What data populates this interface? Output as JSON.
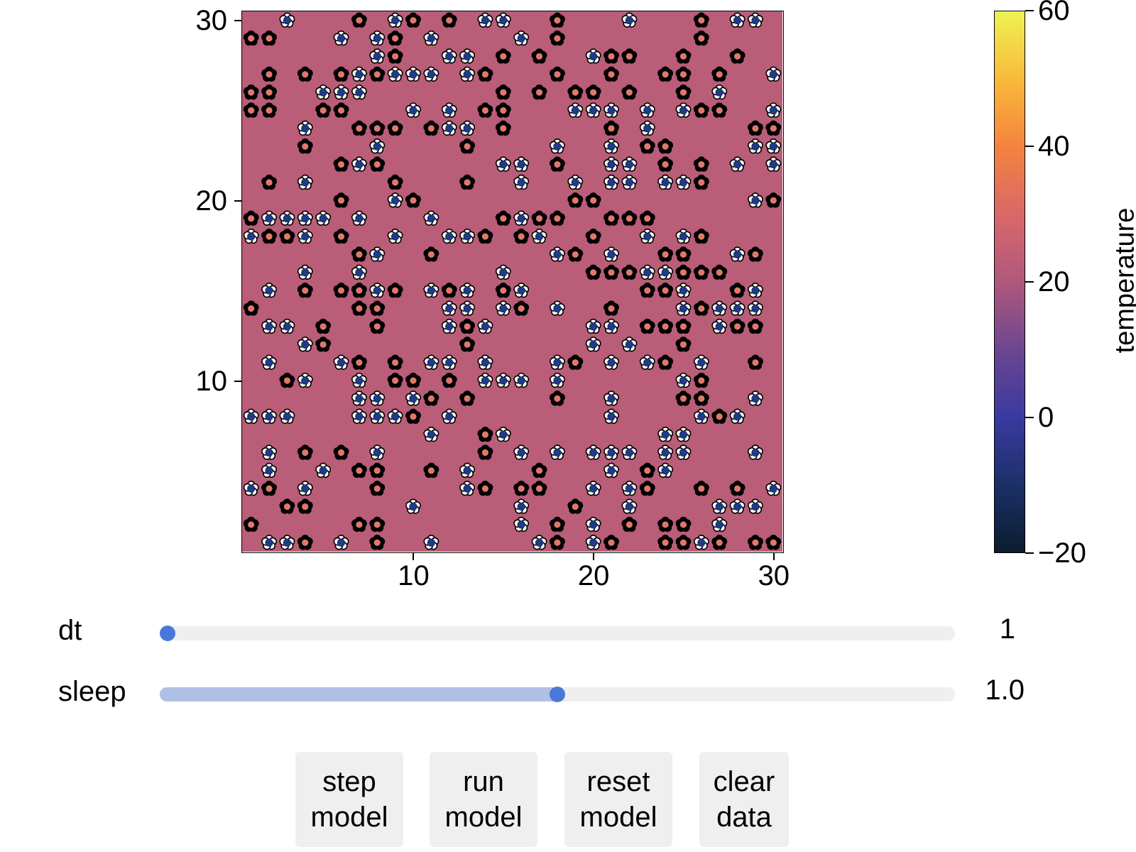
{
  "plot": {
    "x_ticks": [
      "10",
      "20",
      "30"
    ],
    "y_ticks": [
      "10",
      "20",
      "30"
    ]
  },
  "colorbar": {
    "label": "temperature",
    "ticks": [
      "60",
      "40",
      "20",
      "0",
      "−20"
    ],
    "range": [
      -20,
      60
    ],
    "colors": [
      "#0b1d2e",
      "#1b2f66",
      "#3a3aa0",
      "#6a4592",
      "#b0587c",
      "#d8676a",
      "#f4833e",
      "#f9b83a",
      "#eef253"
    ]
  },
  "background_color": "#b95d78",
  "daisy_colors": {
    "white_petal": "#ffffff",
    "white_center": "#1f3b8c",
    "black_petal": "#000000",
    "black_center": "#e0786a"
  },
  "sliders": [
    {
      "label": "dt",
      "value_text": "1",
      "fraction": 0.0
    },
    {
      "label": "sleep",
      "value_text": "1.0",
      "fraction": 0.5
    }
  ],
  "buttons": [
    {
      "label": "step\nmodel"
    },
    {
      "label": "run\nmodel"
    },
    {
      "label": "reset\nmodel"
    },
    {
      "label": "clear\ndata"
    }
  ],
  "chart_data": {
    "type": "heatmap",
    "xlim": [
      0.5,
      30.5
    ],
    "ylim": [
      0.5,
      30.5
    ],
    "colorbar_label": "temperature",
    "colorbar_range": [
      -20,
      60
    ],
    "agents": {
      "white_daisies": [
        [
          3,
          30
        ],
        [
          9,
          30
        ],
        [
          14,
          30
        ],
        [
          15,
          30
        ],
        [
          22,
          30
        ],
        [
          28,
          30
        ],
        [
          29,
          30
        ],
        [
          6,
          29
        ],
        [
          8,
          29
        ],
        [
          11,
          29
        ],
        [
          16,
          29
        ],
        [
          8,
          28
        ],
        [
          12,
          28
        ],
        [
          13,
          28
        ],
        [
          20,
          28
        ],
        [
          7,
          27
        ],
        [
          9,
          27
        ],
        [
          10,
          27
        ],
        [
          11,
          27
        ],
        [
          13,
          27
        ],
        [
          30,
          27
        ],
        [
          5,
          26
        ],
        [
          6,
          26
        ],
        [
          7,
          26
        ],
        [
          27,
          26
        ],
        [
          10,
          25
        ],
        [
          12,
          25
        ],
        [
          19,
          25
        ],
        [
          20,
          25
        ],
        [
          21,
          25
        ],
        [
          23,
          25
        ],
        [
          25,
          25
        ],
        [
          30,
          25
        ],
        [
          4,
          24
        ],
        [
          12,
          24
        ],
        [
          13,
          24
        ],
        [
          23,
          24
        ],
        [
          8,
          23
        ],
        [
          18,
          23
        ],
        [
          21,
          23
        ],
        [
          29,
          23
        ],
        [
          30,
          23
        ],
        [
          7,
          22
        ],
        [
          15,
          22
        ],
        [
          16,
          22
        ],
        [
          21,
          22
        ],
        [
          22,
          22
        ],
        [
          28,
          22
        ],
        [
          30,
          22
        ],
        [
          4,
          21
        ],
        [
          16,
          21
        ],
        [
          19,
          21
        ],
        [
          21,
          21
        ],
        [
          22,
          21
        ],
        [
          24,
          21
        ],
        [
          25,
          21
        ],
        [
          9,
          20
        ],
        [
          29,
          20
        ],
        [
          2,
          19
        ],
        [
          3,
          19
        ],
        [
          4,
          19
        ],
        [
          5,
          19
        ],
        [
          7,
          19
        ],
        [
          11,
          19
        ],
        [
          16,
          19
        ],
        [
          1,
          18
        ],
        [
          4,
          18
        ],
        [
          9,
          18
        ],
        [
          12,
          18
        ],
        [
          13,
          18
        ],
        [
          17,
          18
        ],
        [
          23,
          18
        ],
        [
          25,
          18
        ],
        [
          8,
          17
        ],
        [
          18,
          17
        ],
        [
          21,
          17
        ],
        [
          28,
          17
        ],
        [
          4,
          16
        ],
        [
          7,
          16
        ],
        [
          15,
          16
        ],
        [
          23,
          16
        ],
        [
          24,
          16
        ],
        [
          2,
          15
        ],
        [
          8,
          15
        ],
        [
          11,
          15
        ],
        [
          13,
          15
        ],
        [
          16,
          15
        ],
        [
          25,
          15
        ],
        [
          29,
          15
        ],
        [
          12,
          14
        ],
        [
          13,
          14
        ],
        [
          15,
          14
        ],
        [
          18,
          14
        ],
        [
          25,
          14
        ],
        [
          27,
          14
        ],
        [
          28,
          14
        ],
        [
          29,
          14
        ],
        [
          2,
          13
        ],
        [
          3,
          13
        ],
        [
          12,
          13
        ],
        [
          14,
          13
        ],
        [
          20,
          13
        ],
        [
          21,
          13
        ],
        [
          27,
          13
        ],
        [
          4,
          12
        ],
        [
          20,
          12
        ],
        [
          22,
          12
        ],
        [
          2,
          11
        ],
        [
          6,
          11
        ],
        [
          11,
          11
        ],
        [
          12,
          11
        ],
        [
          14,
          11
        ],
        [
          18,
          11
        ],
        [
          21,
          11
        ],
        [
          23,
          11
        ],
        [
          26,
          11
        ],
        [
          4,
          10
        ],
        [
          7,
          10
        ],
        [
          14,
          10
        ],
        [
          15,
          10
        ],
        [
          16,
          10
        ],
        [
          18,
          10
        ],
        [
          25,
          10
        ],
        [
          7,
          9
        ],
        [
          8,
          9
        ],
        [
          10,
          9
        ],
        [
          21,
          9
        ],
        [
          29,
          9
        ],
        [
          1,
          8
        ],
        [
          2,
          8
        ],
        [
          3,
          8
        ],
        [
          7,
          8
        ],
        [
          8,
          8
        ],
        [
          9,
          8
        ],
        [
          12,
          8
        ],
        [
          21,
          8
        ],
        [
          26,
          8
        ],
        [
          28,
          8
        ],
        [
          11,
          7
        ],
        [
          15,
          7
        ],
        [
          24,
          7
        ],
        [
          25,
          7
        ],
        [
          2,
          6
        ],
        [
          8,
          6
        ],
        [
          16,
          6
        ],
        [
          18,
          6
        ],
        [
          20,
          6
        ],
        [
          21,
          6
        ],
        [
          22,
          6
        ],
        [
          24,
          6
        ],
        [
          25,
          6
        ],
        [
          29,
          6
        ],
        [
          2,
          5
        ],
        [
          5,
          5
        ],
        [
          13,
          5
        ],
        [
          21,
          5
        ],
        [
          24,
          5
        ],
        [
          1,
          4
        ],
        [
          4,
          4
        ],
        [
          13,
          4
        ],
        [
          20,
          4
        ],
        [
          22,
          4
        ],
        [
          30,
          4
        ],
        [
          10,
          3
        ],
        [
          16,
          3
        ],
        [
          22,
          3
        ],
        [
          27,
          3
        ],
        [
          28,
          3
        ],
        [
          29,
          3
        ],
        [
          16,
          2
        ],
        [
          20,
          2
        ],
        [
          27,
          2
        ],
        [
          2,
          1
        ],
        [
          3,
          1
        ],
        [
          6,
          1
        ],
        [
          11,
          1
        ],
        [
          17,
          1
        ],
        [
          20,
          1
        ],
        [
          26,
          1
        ]
      ],
      "black_daisies": [
        [
          7,
          30
        ],
        [
          10,
          30
        ],
        [
          12,
          30
        ],
        [
          18,
          30
        ],
        [
          26,
          30
        ],
        [
          1,
          29
        ],
        [
          2,
          29
        ],
        [
          9,
          29
        ],
        [
          18,
          29
        ],
        [
          26,
          29
        ],
        [
          9,
          28
        ],
        [
          15,
          28
        ],
        [
          17,
          28
        ],
        [
          21,
          28
        ],
        [
          22,
          28
        ],
        [
          25,
          28
        ],
        [
          28,
          28
        ],
        [
          2,
          27
        ],
        [
          4,
          27
        ],
        [
          6,
          27
        ],
        [
          8,
          27
        ],
        [
          14,
          27
        ],
        [
          18,
          27
        ],
        [
          21,
          27
        ],
        [
          24,
          27
        ],
        [
          25,
          27
        ],
        [
          27,
          27
        ],
        [
          1,
          26
        ],
        [
          2,
          26
        ],
        [
          15,
          26
        ],
        [
          17,
          26
        ],
        [
          19,
          26
        ],
        [
          20,
          26
        ],
        [
          22,
          26
        ],
        [
          25,
          26
        ],
        [
          1,
          25
        ],
        [
          2,
          25
        ],
        [
          5,
          25
        ],
        [
          6,
          25
        ],
        [
          14,
          25
        ],
        [
          15,
          25
        ],
        [
          26,
          25
        ],
        [
          27,
          25
        ],
        [
          7,
          24
        ],
        [
          8,
          24
        ],
        [
          9,
          24
        ],
        [
          11,
          24
        ],
        [
          15,
          24
        ],
        [
          21,
          24
        ],
        [
          29,
          24
        ],
        [
          30,
          24
        ],
        [
          4,
          23
        ],
        [
          13,
          23
        ],
        [
          23,
          23
        ],
        [
          24,
          23
        ],
        [
          6,
          22
        ],
        [
          8,
          22
        ],
        [
          18,
          22
        ],
        [
          24,
          22
        ],
        [
          26,
          22
        ],
        [
          2,
          21
        ],
        [
          9,
          21
        ],
        [
          13,
          21
        ],
        [
          26,
          21
        ],
        [
          6,
          20
        ],
        [
          10,
          20
        ],
        [
          19,
          20
        ],
        [
          20,
          20
        ],
        [
          30,
          20
        ],
        [
          1,
          19
        ],
        [
          15,
          19
        ],
        [
          17,
          19
        ],
        [
          18,
          19
        ],
        [
          21,
          19
        ],
        [
          22,
          19
        ],
        [
          23,
          19
        ],
        [
          2,
          18
        ],
        [
          3,
          18
        ],
        [
          6,
          18
        ],
        [
          14,
          18
        ],
        [
          16,
          18
        ],
        [
          20,
          18
        ],
        [
          26,
          18
        ],
        [
          7,
          17
        ],
        [
          11,
          17
        ],
        [
          19,
          17
        ],
        [
          24,
          17
        ],
        [
          25,
          17
        ],
        [
          29,
          17
        ],
        [
          20,
          16
        ],
        [
          21,
          16
        ],
        [
          22,
          16
        ],
        [
          25,
          16
        ],
        [
          26,
          16
        ],
        [
          27,
          16
        ],
        [
          4,
          15
        ],
        [
          6,
          15
        ],
        [
          7,
          15
        ],
        [
          9,
          15
        ],
        [
          12,
          15
        ],
        [
          15,
          15
        ],
        [
          23,
          15
        ],
        [
          24,
          15
        ],
        [
          28,
          15
        ],
        [
          1,
          14
        ],
        [
          7,
          14
        ],
        [
          8,
          14
        ],
        [
          16,
          14
        ],
        [
          21,
          14
        ],
        [
          26,
          14
        ],
        [
          5,
          13
        ],
        [
          8,
          13
        ],
        [
          13,
          13
        ],
        [
          23,
          13
        ],
        [
          24,
          13
        ],
        [
          25,
          13
        ],
        [
          28,
          13
        ],
        [
          29,
          13
        ],
        [
          5,
          12
        ],
        [
          13,
          12
        ],
        [
          25,
          12
        ],
        [
          7,
          11
        ],
        [
          9,
          11
        ],
        [
          19,
          11
        ],
        [
          24,
          11
        ],
        [
          29,
          11
        ],
        [
          3,
          10
        ],
        [
          9,
          10
        ],
        [
          10,
          10
        ],
        [
          12,
          10
        ],
        [
          26,
          10
        ],
        [
          11,
          9
        ],
        [
          13,
          9
        ],
        [
          18,
          9
        ],
        [
          25,
          9
        ],
        [
          26,
          9
        ],
        [
          10,
          8
        ],
        [
          27,
          8
        ],
        [
          14,
          7
        ],
        [
          4,
          6
        ],
        [
          6,
          6
        ],
        [
          14,
          6
        ],
        [
          7,
          5
        ],
        [
          8,
          5
        ],
        [
          11,
          5
        ],
        [
          17,
          5
        ],
        [
          23,
          5
        ],
        [
          2,
          4
        ],
        [
          8,
          4
        ],
        [
          14,
          4
        ],
        [
          16,
          4
        ],
        [
          17,
          4
        ],
        [
          23,
          4
        ],
        [
          26,
          4
        ],
        [
          28,
          4
        ],
        [
          3,
          3
        ],
        [
          4,
          3
        ],
        [
          19,
          3
        ],
        [
          1,
          2
        ],
        [
          7,
          2
        ],
        [
          8,
          2
        ],
        [
          18,
          2
        ],
        [
          22,
          2
        ],
        [
          24,
          2
        ],
        [
          25,
          2
        ],
        [
          4,
          1
        ],
        [
          8,
          1
        ],
        [
          18,
          1
        ],
        [
          21,
          1
        ],
        [
          24,
          1
        ],
        [
          25,
          1
        ],
        [
          27,
          1
        ],
        [
          29,
          1
        ],
        [
          30,
          1
        ]
      ]
    }
  }
}
